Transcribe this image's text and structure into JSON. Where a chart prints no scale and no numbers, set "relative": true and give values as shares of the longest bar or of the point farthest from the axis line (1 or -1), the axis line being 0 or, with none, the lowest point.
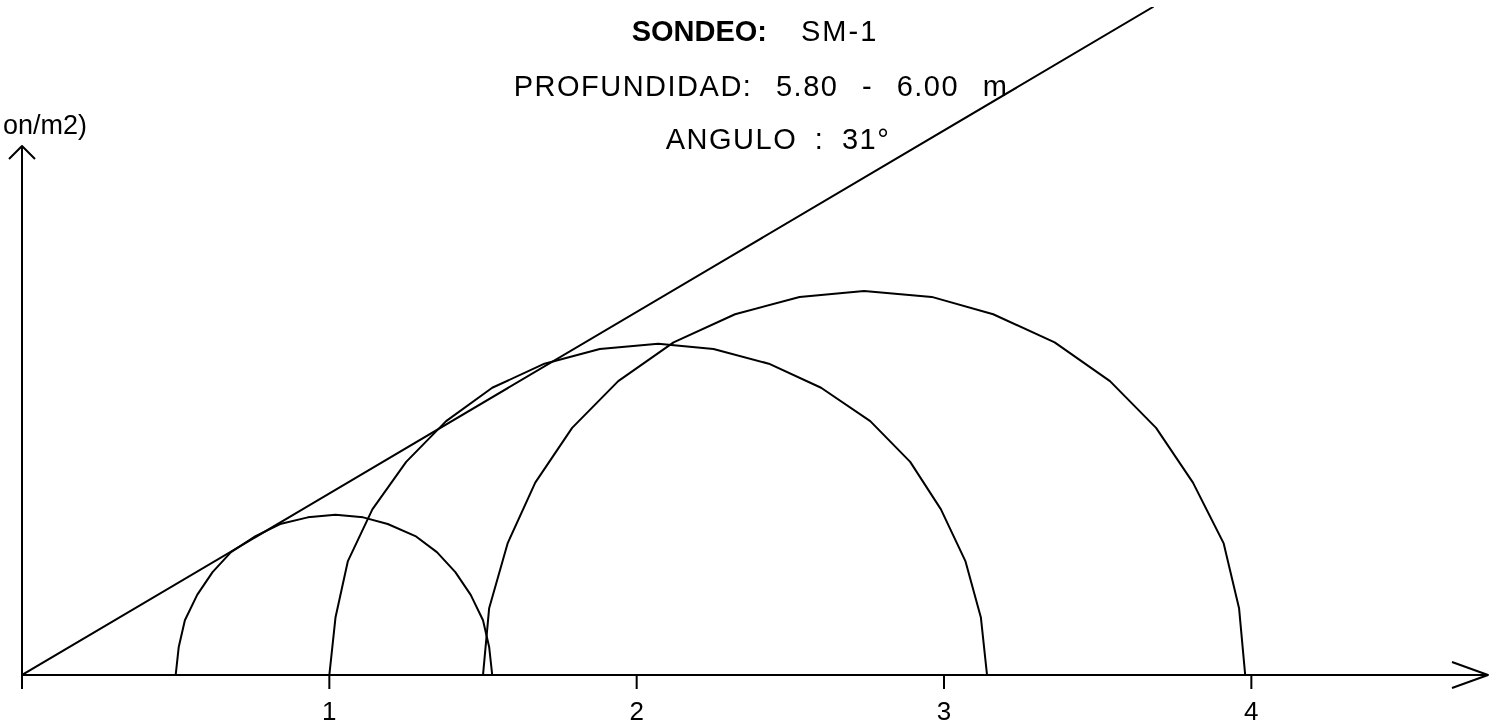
{
  "chart_data": {
    "type": "line",
    "title": "SONDEO: SM-1",
    "subtitle": "PROFUNDIDAD: 5.80 - 6.00 m",
    "ylabel": "on/m2)",
    "annotations": [
      "ANGULO : 31°"
    ],
    "relative": true,
    "series": [
      {
        "color": "#000000",
        "x": [
          0,
          3.68
        ],
        "values": [
          0,
          1
        ]
      },
      {
        "color": "#000000",
        "x": [
          0.5,
          0.51,
          0.53,
          0.57,
          0.62,
          0.68,
          0.76,
          0.84,
          0.93,
          1.02,
          1.11,
          1.19,
          1.28,
          1.35,
          1.41,
          1.46,
          1.5,
          1.52,
          1.53
        ],
        "values": [
          0,
          0.042,
          0.082,
          0.12,
          0.154,
          0.184,
          0.208,
          0.226,
          0.236,
          0.24,
          0.236,
          0.226,
          0.208,
          0.184,
          0.154,
          0.12,
          0.082,
          0.042,
          0
        ]
      },
      {
        "color": "#000000",
        "x": [
          1.0,
          1.02,
          1.06,
          1.14,
          1.25,
          1.38,
          1.53,
          1.7,
          1.88,
          2.07,
          2.25,
          2.43,
          2.6,
          2.76,
          2.89,
          2.99,
          3.07,
          3.12,
          3.14
        ],
        "values": [
          0,
          0.086,
          0.17,
          0.248,
          0.319,
          0.38,
          0.43,
          0.466,
          0.488,
          0.496,
          0.488,
          0.466,
          0.43,
          0.38,
          0.319,
          0.248,
          0.17,
          0.086,
          0
        ]
      },
      {
        "color": "#000000",
        "x": [
          1.5,
          1.52,
          1.58,
          1.67,
          1.79,
          1.94,
          2.12,
          2.32,
          2.53,
          2.74,
          2.96,
          3.16,
          3.36,
          3.54,
          3.69,
          3.81,
          3.91,
          3.96,
          3.98
        ],
        "values": [
          0,
          0.1,
          0.197,
          0.288,
          0.37,
          0.44,
          0.498,
          0.54,
          0.566,
          0.575,
          0.566,
          0.54,
          0.498,
          0.44,
          0.37,
          0.288,
          0.197,
          0.1,
          0
        ]
      }
    ],
    "xlim": [
      0,
      4.77
    ],
    "xticks": [
      {
        "value": 0,
        "label": null
      },
      1,
      2,
      3,
      4
    ]
  }
}
